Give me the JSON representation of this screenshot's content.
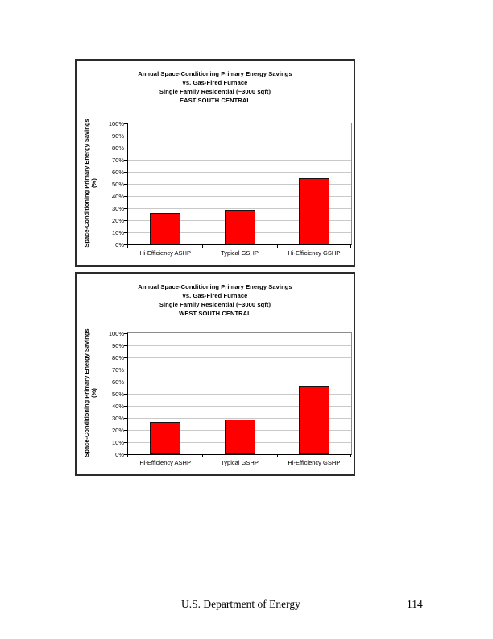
{
  "document": {
    "footer_text": "U.S. Department of Energy",
    "page_number": "114"
  },
  "chart_data": [
    {
      "type": "bar",
      "title": "Annual Space-Conditioning Primary Energy Savings vs. Gas-Fired Furnace Single Family Residential (~3000 sqft) EAST SOUTH CENTRAL",
      "title_lines": [
        "Annual Space-Conditioning Primary Energy Savings",
        "vs. Gas-Fired Furnace",
        "Single Family Residential (~3000 sqft)",
        "EAST SOUTH CENTRAL"
      ],
      "region": "EAST SOUTH CENTRAL",
      "xlabel": "",
      "ylabel": "Space-Conditioning Primary Energy Savings (%)",
      "ylabel_lines": [
        "Space-Conditioning Primary Energy Savings",
        "(%)"
      ],
      "categories": [
        "Hi-Efficiency ASHP",
        "Typical GSHP",
        "Hi-Efficiency GSHP"
      ],
      "values": [
        26,
        29,
        55
      ],
      "value_unit": "%",
      "ylim": [
        0,
        100
      ],
      "ytick_step": 10,
      "ytick_labels": [
        "100%",
        "90%",
        "80%",
        "70%",
        "60%",
        "50%",
        "40%",
        "30%",
        "20%",
        "10%",
        "0%"
      ],
      "grid": true,
      "legend": "none",
      "bar_color": "#FF0000",
      "bar_border_color": "#141414"
    },
    {
      "type": "bar",
      "title": "Annual Space-Conditioning Primary Energy Savings vs. Gas-Fired Furnace Single Family Residential (~3000 sqft) WEST SOUTH CENTRAL",
      "title_lines": [
        "Annual Space-Conditioning Primary Energy Savings",
        "vs. Gas-Fired Furnace",
        "Single Family Residential (~3000 sqft)",
        "WEST SOUTH CENTRAL"
      ],
      "region": "WEST SOUTH CENTRAL",
      "xlabel": "",
      "ylabel": "Space-Conditioning Primary Energy Savings (%)",
      "ylabel_lines": [
        "Space-Conditioning Primary Energy Savings",
        "(%)"
      ],
      "categories": [
        "Hi-Efficiency ASHP",
        "Typical GSHP",
        "Hi-Efficiency GSHP"
      ],
      "values": [
        27,
        29,
        56
      ],
      "value_unit": "%",
      "ylim": [
        0,
        100
      ],
      "ytick_step": 10,
      "ytick_labels": [
        "100%",
        "90%",
        "80%",
        "70%",
        "60%",
        "50%",
        "40%",
        "30%",
        "20%",
        "10%",
        "0%"
      ],
      "grid": true,
      "legend": "none",
      "bar_color": "#FF0000",
      "bar_border_color": "#141414"
    }
  ]
}
